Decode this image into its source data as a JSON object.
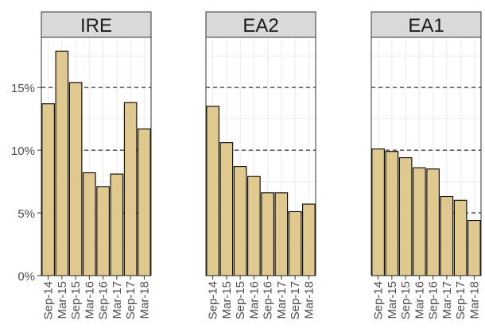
{
  "chart_data": {
    "type": "bar",
    "categories": [
      "Sep-14",
      "Mar-15",
      "Sep-15",
      "Mar-16",
      "Sep-16",
      "Mar-17",
      "Sep-17",
      "Mar-18"
    ],
    "ylim": [
      0,
      0.19
    ],
    "y_ticks": [
      {
        "value": 0,
        "label": "0%"
      },
      {
        "value": 0.05,
        "label": "5%"
      },
      {
        "value": 0.1,
        "label": "10%"
      },
      {
        "value": 0.15,
        "label": "15%"
      }
    ],
    "reference_lines": [
      0.05,
      0.1,
      0.15
    ],
    "grid": true,
    "panels": [
      {
        "title": "IRE",
        "values": [
          0.137,
          0.179,
          0.154,
          0.082,
          0.071,
          0.081,
          0.138,
          0.117
        ]
      },
      {
        "title": "EA2",
        "values": [
          0.135,
          0.106,
          0.087,
          0.079,
          0.066,
          0.066,
          0.051,
          0.057
        ]
      },
      {
        "title": "EA1",
        "values": [
          0.101,
          0.099,
          0.094,
          0.086,
          0.085,
          0.063,
          0.06,
          0.044
        ]
      }
    ],
    "colors": {
      "bar_fill": "#dfc98f",
      "bar_stroke": "#000000",
      "strip_fill": "#d9d9d9",
      "grid": "#ebebeb"
    }
  }
}
